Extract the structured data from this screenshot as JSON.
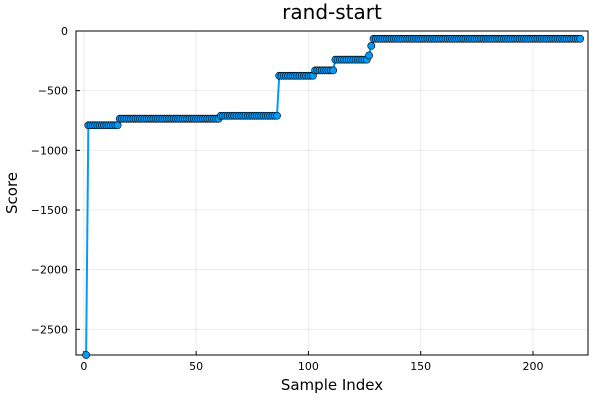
{
  "chart_data": {
    "type": "line",
    "title": "rand-start",
    "xlabel": "Sample Index",
    "ylabel": "Score",
    "xlim": [
      -3.5,
      224.5
    ],
    "ylim": [
      -2715,
      0
    ],
    "xticks": [
      0,
      50,
      100,
      150,
      200
    ],
    "yticks": [
      0,
      -500,
      -1000,
      -1500,
      -2000,
      -2500
    ],
    "x_tick_labels": [
      "0",
      "50",
      "100",
      "150",
      "200"
    ],
    "y_tick_labels": [
      "0",
      "−500",
      "−1000",
      "−1500",
      "−2000",
      "−2500"
    ],
    "grid": true,
    "legend": "none",
    "line_color": "#009af9",
    "marker_color": "#009af9",
    "marker_edge": "#000000",
    "series": [
      {
        "steps": [
          {
            "from": 1,
            "to": 1,
            "y": -2715
          },
          {
            "from": 2,
            "to": 15,
            "y": -790
          },
          {
            "from": 16,
            "to": 60,
            "y": -735
          },
          {
            "from": 61,
            "to": 86,
            "y": -710
          },
          {
            "from": 87,
            "to": 102,
            "y": -375
          },
          {
            "from": 103,
            "to": 111,
            "y": -330
          },
          {
            "from": 112,
            "to": 126,
            "y": -240
          },
          {
            "from": 127,
            "to": 127,
            "y": -205
          },
          {
            "from": 128,
            "to": 128,
            "y": -125
          },
          {
            "from": 129,
            "to": 221,
            "y": -65
          }
        ]
      }
    ]
  }
}
